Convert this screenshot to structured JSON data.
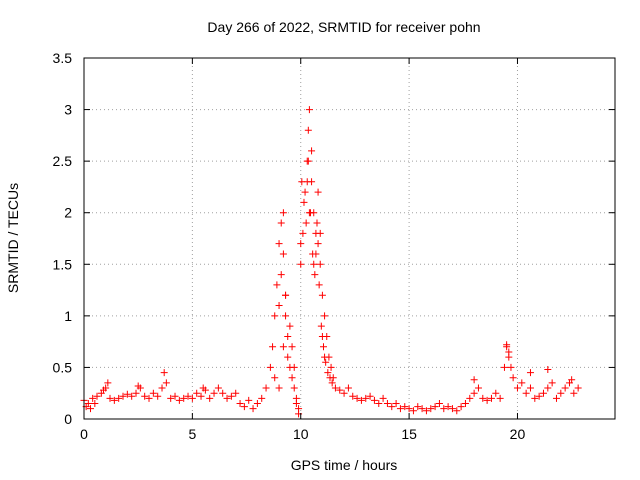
{
  "chart_data": {
    "type": "scatter",
    "title": "Day 266 of 2022, SRMTID for receiver pohn",
    "xlabel": "GPS time / hours",
    "ylabel": "SRMTID / TECUs",
    "xlim": [
      0,
      24.5
    ],
    "ylim": [
      0,
      3.5
    ],
    "xticks": [
      0,
      5,
      10,
      15,
      20
    ],
    "xtick_labels": [
      "0",
      "5",
      "10",
      "15",
      "20"
    ],
    "yticks": [
      0,
      0.5,
      1,
      1.5,
      2,
      2.5,
      3,
      3.5
    ],
    "ytick_labels": [
      "0",
      "0.5",
      "1",
      "1.5",
      "2",
      "2.5",
      "3",
      "3.5"
    ],
    "grid": true,
    "marker": "+",
    "color": "#ff0000",
    "series": [
      {
        "name": "SRMTID",
        "x": [
          0.0,
          0.2,
          0.4,
          0.6,
          0.8,
          1.0,
          1.2,
          1.4,
          1.6,
          1.8,
          2.0,
          2.2,
          2.4,
          2.6,
          2.8,
          3.0,
          3.2,
          3.4,
          3.6,
          3.8,
          4.0,
          4.2,
          4.4,
          4.6,
          4.8,
          5.0,
          5.2,
          5.4,
          5.6,
          5.8,
          6.0,
          6.2,
          6.4,
          6.6,
          6.8,
          7.0,
          7.2,
          7.4,
          7.6,
          7.8,
          8.0,
          8.2,
          8.4,
          8.6,
          8.7,
          8.8,
          8.9,
          9.0,
          9.1,
          9.2,
          9.3,
          9.4,
          9.5,
          9.6,
          9.7,
          9.8,
          9.9,
          10.0,
          10.1,
          10.2,
          10.3,
          10.4,
          10.5,
          10.6,
          10.7,
          10.8,
          10.9,
          11.0,
          11.1,
          11.2,
          11.3,
          11.4,
          11.5,
          11.6,
          11.8,
          12.0,
          12.2,
          12.4,
          12.6,
          12.8,
          13.0,
          13.2,
          13.4,
          13.6,
          13.8,
          14.0,
          14.2,
          14.4,
          14.6,
          14.8,
          15.0,
          15.2,
          15.4,
          15.6,
          15.8,
          16.0,
          16.2,
          16.4,
          16.6,
          16.8,
          17.0,
          17.2,
          17.4,
          17.6,
          17.8,
          18.0,
          18.2,
          18.4,
          18.6,
          18.8,
          19.0,
          19.2,
          19.4,
          19.5,
          19.6,
          19.7,
          19.8,
          20.0,
          20.2,
          20.4,
          20.6,
          20.8,
          21.0,
          21.2,
          21.4,
          21.6,
          21.8,
          22.0,
          22.2,
          22.4,
          22.6,
          22.8,
          0.1,
          0.3,
          0.5,
          0.9,
          1.1,
          2.5,
          3.7,
          5.5,
          8.8,
          9.0,
          9.1,
          9.2,
          9.3,
          9.4,
          9.5,
          9.6,
          9.7,
          9.8,
          9.9,
          10.0,
          10.05,
          10.15,
          10.25,
          10.35,
          10.45,
          10.55,
          10.65,
          10.75,
          10.85,
          10.95,
          11.05,
          11.15,
          11.25,
          11.35,
          11.45,
          10.3,
          10.35,
          10.4,
          10.5,
          10.6,
          10.7,
          10.8,
          10.9,
          11.0,
          11.1,
          9.2,
          9.3,
          9.0,
          18.0,
          19.5,
          19.6,
          20.6,
          21.4,
          22.5
        ],
        "y": [
          0.18,
          0.15,
          0.2,
          0.22,
          0.25,
          0.3,
          0.2,
          0.18,
          0.2,
          0.22,
          0.24,
          0.22,
          0.25,
          0.3,
          0.22,
          0.2,
          0.25,
          0.22,
          0.3,
          0.35,
          0.2,
          0.22,
          0.18,
          0.2,
          0.22,
          0.2,
          0.25,
          0.22,
          0.28,
          0.2,
          0.25,
          0.3,
          0.25,
          0.2,
          0.22,
          0.25,
          0.15,
          0.12,
          0.18,
          0.1,
          0.15,
          0.2,
          0.3,
          0.5,
          0.7,
          1.0,
          1.3,
          1.7,
          1.9,
          2.0,
          1.2,
          0.8,
          0.5,
          0.4,
          0.3,
          0.2,
          0.1,
          1.5,
          1.8,
          2.2,
          2.5,
          3.0,
          2.6,
          2.0,
          1.8,
          2.2,
          1.5,
          1.2,
          1.0,
          0.8,
          0.6,
          0.5,
          0.4,
          0.3,
          0.28,
          0.25,
          0.3,
          0.22,
          0.2,
          0.18,
          0.2,
          0.22,
          0.18,
          0.15,
          0.2,
          0.15,
          0.12,
          0.15,
          0.1,
          0.12,
          0.1,
          0.08,
          0.12,
          0.1,
          0.08,
          0.1,
          0.12,
          0.15,
          0.1,
          0.12,
          0.1,
          0.08,
          0.12,
          0.15,
          0.2,
          0.25,
          0.3,
          0.2,
          0.18,
          0.2,
          0.25,
          0.2,
          0.5,
          0.7,
          0.6,
          0.5,
          0.4,
          0.3,
          0.35,
          0.25,
          0.3,
          0.2,
          0.22,
          0.25,
          0.3,
          0.35,
          0.2,
          0.25,
          0.3,
          0.35,
          0.25,
          0.3,
          0.12,
          0.1,
          0.15,
          0.28,
          0.35,
          0.32,
          0.45,
          0.3,
          0.4,
          1.1,
          1.4,
          1.6,
          1.0,
          0.6,
          0.9,
          0.7,
          0.5,
          0.15,
          0.05,
          1.7,
          2.3,
          2.1,
          1.9,
          2.8,
          2.0,
          1.6,
          1.4,
          1.9,
          1.3,
          0.9,
          0.7,
          0.55,
          0.45,
          0.4,
          0.35,
          2.3,
          2.5,
          2.0,
          2.3,
          1.5,
          1.6,
          1.7,
          1.8,
          0.8,
          0.6,
          0.7,
          1.2,
          0.3,
          0.38,
          0.72,
          0.65,
          0.45,
          0.48,
          0.38
        ]
      }
    ]
  }
}
